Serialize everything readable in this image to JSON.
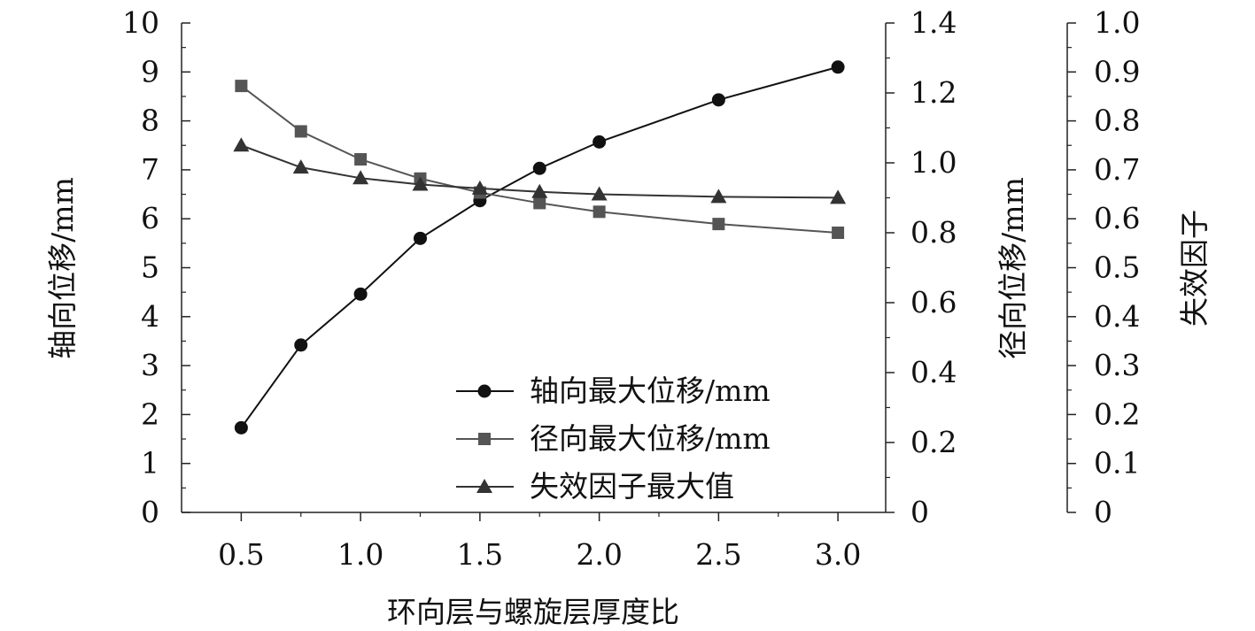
{
  "chart_data": {
    "type": "line",
    "xlabel": "环向层与螺旋层厚度比",
    "x": [
      0.5,
      0.75,
      1.0,
      1.25,
      1.5,
      1.75,
      2.0,
      2.5,
      3.0
    ],
    "xticks": [
      0.5,
      1.0,
      1.5,
      2.0,
      2.5,
      3.0
    ],
    "xtick_labels": [
      "0.5",
      "1.0",
      "1.5",
      "2.0",
      "2.5",
      "3.0"
    ],
    "xlim": [
      0.25,
      3.2
    ],
    "axes": [
      {
        "id": "left",
        "label": "轴向位移/mm",
        "ylim": [
          0,
          10
        ],
        "ticks": [
          0,
          1,
          2,
          3,
          4,
          5,
          6,
          7,
          8,
          9,
          10
        ],
        "tick_labels": [
          "0",
          "1",
          "2",
          "3",
          "4",
          "5",
          "6",
          "7",
          "8",
          "9",
          "10"
        ]
      },
      {
        "id": "right1",
        "label": "径向位移/mm",
        "ylim": [
          0,
          1.4
        ],
        "ticks": [
          0,
          0.2,
          0.4,
          0.6,
          0.8,
          1.0,
          1.2,
          1.4
        ],
        "tick_labels": [
          "0",
          "0.2",
          "0.4",
          "0.6",
          "0.8",
          "1.0",
          "1.2",
          "1.4"
        ]
      },
      {
        "id": "right2",
        "label": "失效因子",
        "ylim": [
          0,
          1.0
        ],
        "ticks": [
          0,
          0.1,
          0.2,
          0.3,
          0.4,
          0.5,
          0.6,
          0.7,
          0.8,
          0.9,
          1.0
        ],
        "tick_labels": [
          "0",
          "0.1",
          "0.2",
          "0.3",
          "0.4",
          "0.5",
          "0.6",
          "0.7",
          "0.8",
          "0.9",
          "1.0"
        ]
      }
    ],
    "series": [
      {
        "name": "轴向最大位移/mm",
        "axis": "left",
        "marker": "circle",
        "color": "#111111",
        "values": [
          1.73,
          3.42,
          4.46,
          5.6,
          6.37,
          7.03,
          7.57,
          8.43,
          9.1
        ]
      },
      {
        "name": "径向最大位移/mm",
        "axis": "right1",
        "marker": "square",
        "color": "#555555",
        "values": [
          1.22,
          1.09,
          1.01,
          0.955,
          0.915,
          0.885,
          0.86,
          0.825,
          0.8
        ]
      },
      {
        "name": "失效因子最大值",
        "axis": "right2",
        "marker": "triangle",
        "color": "#333333",
        "values": [
          0.75,
          0.705,
          0.683,
          0.67,
          0.662,
          0.655,
          0.65,
          0.645,
          0.643
        ]
      }
    ],
    "legend_position": "bottom-right inside",
    "grid": false
  }
}
